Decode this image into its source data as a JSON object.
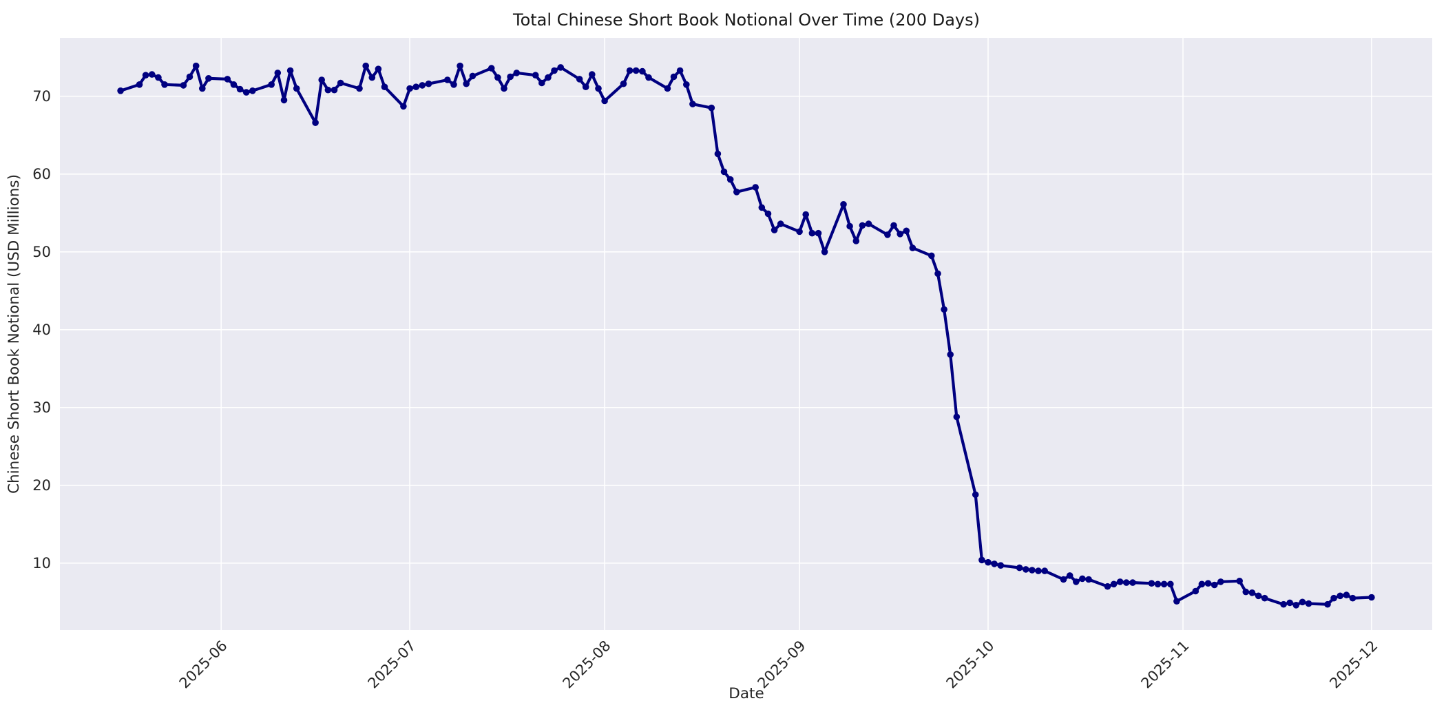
{
  "figure": {
    "title": "Total Chinese Short Book Notional Over Time (200 Days)",
    "xlabel": "Date",
    "ylabel": "Chinese Short Book Notional (USD Millions)"
  },
  "chart_data": {
    "type": "line",
    "title": "Total Chinese Short Book Notional Over Time (200 Days)",
    "xlabel": "Date",
    "ylabel": "Chinese Short Book Notional (USD Millions)",
    "legend": "none",
    "grid": "on",
    "x_tick_labels": [
      "2025-06",
      "2025-07",
      "2025-08",
      "2025-09",
      "2025-10",
      "2025-11",
      "2025-12"
    ],
    "y_ticks": [
      10,
      20,
      30,
      40,
      50,
      60,
      70
    ],
    "ylim": [
      1.4,
      77.5
    ],
    "x_pad_days": 9.65,
    "colors": {
      "line": "#000080",
      "plot_bg": "#EAEAF2",
      "grid": "#FFFFFF",
      "text": "#262626",
      "fig_bg": "#FFFFFF"
    },
    "series": [
      {
        "name": "Total Chinese Short Book Notional",
        "dates": [
          "2025-05-16",
          "2025-05-19",
          "2025-05-20",
          "2025-05-21",
          "2025-05-22",
          "2025-05-23",
          "2025-05-26",
          "2025-05-27",
          "2025-05-28",
          "2025-05-29",
          "2025-05-30",
          "2025-06-02",
          "2025-06-03",
          "2025-06-04",
          "2025-06-05",
          "2025-06-06",
          "2025-06-09",
          "2025-06-10",
          "2025-06-11",
          "2025-06-12",
          "2025-06-13",
          "2025-06-16",
          "2025-06-17",
          "2025-06-18",
          "2025-06-19",
          "2025-06-20",
          "2025-06-23",
          "2025-06-24",
          "2025-06-25",
          "2025-06-26",
          "2025-06-27",
          "2025-06-30",
          "2025-07-01",
          "2025-07-02",
          "2025-07-03",
          "2025-07-04",
          "2025-07-07",
          "2025-07-08",
          "2025-07-09",
          "2025-07-10",
          "2025-07-11",
          "2025-07-14",
          "2025-07-15",
          "2025-07-16",
          "2025-07-17",
          "2025-07-18",
          "2025-07-21",
          "2025-07-22",
          "2025-07-23",
          "2025-07-24",
          "2025-07-25",
          "2025-07-28",
          "2025-07-29",
          "2025-07-30",
          "2025-07-31",
          "2025-08-01",
          "2025-08-04",
          "2025-08-05",
          "2025-08-06",
          "2025-08-07",
          "2025-08-08",
          "2025-08-11",
          "2025-08-12",
          "2025-08-13",
          "2025-08-14",
          "2025-08-15",
          "2025-08-18",
          "2025-08-19",
          "2025-08-20",
          "2025-08-21",
          "2025-08-22",
          "2025-08-25",
          "2025-08-26",
          "2025-08-27",
          "2025-08-28",
          "2025-08-29",
          "2025-09-01",
          "2025-09-02",
          "2025-09-03",
          "2025-09-04",
          "2025-09-05",
          "2025-09-08",
          "2025-09-09",
          "2025-09-10",
          "2025-09-11",
          "2025-09-12",
          "2025-09-15",
          "2025-09-16",
          "2025-09-17",
          "2025-09-18",
          "2025-09-19",
          "2025-09-22",
          "2025-09-23",
          "2025-09-24",
          "2025-09-25",
          "2025-09-26",
          "2025-09-29",
          "2025-09-30",
          "2025-10-01",
          "2025-10-02",
          "2025-10-03",
          "2025-10-06",
          "2025-10-07",
          "2025-10-08",
          "2025-10-09",
          "2025-10-10",
          "2025-10-13",
          "2025-10-14",
          "2025-10-15",
          "2025-10-16",
          "2025-10-17",
          "2025-10-20",
          "2025-10-21",
          "2025-10-22",
          "2025-10-23",
          "2025-10-24",
          "2025-10-27",
          "2025-10-28",
          "2025-10-29",
          "2025-10-30",
          "2025-10-31",
          "2025-11-03",
          "2025-11-04",
          "2025-11-05",
          "2025-11-06",
          "2025-11-07",
          "2025-11-10",
          "2025-11-11",
          "2025-11-12",
          "2025-11-13",
          "2025-11-14",
          "2025-11-17",
          "2025-11-18",
          "2025-11-19",
          "2025-11-20",
          "2025-11-21",
          "2025-11-24",
          "2025-11-25",
          "2025-11-26",
          "2025-11-27",
          "2025-11-28",
          "2025-12-01"
        ],
        "values": [
          70.7,
          71.5,
          72.7,
          72.8,
          72.4,
          71.5,
          71.4,
          72.5,
          73.9,
          71.0,
          72.3,
          72.2,
          71.5,
          70.9,
          70.5,
          70.7,
          71.5,
          73.0,
          69.5,
          73.3,
          71.0,
          66.6,
          72.1,
          70.8,
          70.8,
          71.7,
          71.0,
          73.9,
          72.4,
          73.5,
          71.2,
          68.7,
          71.0,
          71.2,
          71.4,
          71.6,
          72.1,
          71.5,
          73.9,
          71.6,
          72.6,
          73.6,
          72.4,
          71.0,
          72.5,
          73.0,
          72.7,
          71.7,
          72.4,
          73.3,
          73.7,
          72.2,
          71.2,
          72.8,
          71.0,
          69.4,
          71.6,
          73.3,
          73.3,
          73.2,
          72.4,
          71.0,
          72.5,
          73.3,
          71.5,
          69.0,
          68.5,
          62.6,
          60.3,
          59.3,
          57.7,
          58.3,
          55.7,
          54.9,
          52.8,
          53.6,
          52.6,
          54.8,
          52.4,
          52.4,
          50.0,
          56.1,
          53.3,
          51.4,
          53.4,
          53.6,
          52.2,
          53.4,
          52.3,
          52.7,
          50.5,
          49.5,
          47.2,
          42.6,
          36.8,
          28.8,
          18.8,
          10.4,
          10.1,
          9.9,
          9.7,
          9.4,
          9.2,
          9.1,
          9.0,
          9.0,
          7.9,
          8.4,
          7.6,
          8.0,
          7.9,
          7.0,
          7.3,
          7.6,
          7.5,
          7.5,
          7.4,
          7.3,
          7.3,
          7.3,
          5.1,
          6.4,
          7.3,
          7.4,
          7.2,
          7.6,
          7.7,
          6.3,
          6.2,
          5.8,
          5.5,
          4.7,
          4.9,
          4.6,
          5.0,
          4.8,
          4.7,
          5.5,
          5.8,
          5.9,
          5.5,
          5.6
        ]
      }
    ]
  }
}
